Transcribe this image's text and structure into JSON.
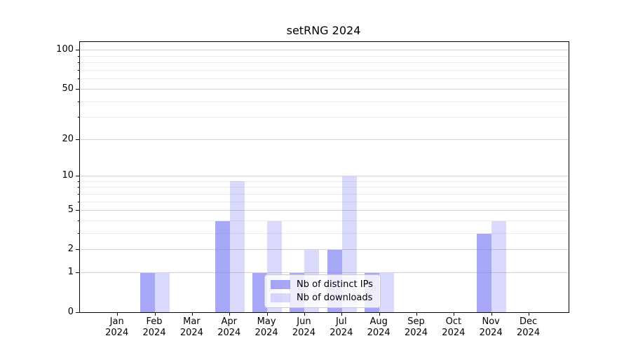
{
  "title": "setRNG 2024",
  "colors": {
    "bar_dark": "rgba(115,115,243,0.63)",
    "bar_light": "rgba(115,115,243,0.27)",
    "grid_major": "#d3d3d3",
    "grid_minor": "#ebebeb",
    "axis": "#000000"
  },
  "chart_data": {
    "type": "bar",
    "title": "setRNG 2024",
    "categories": [
      "Jan 2024",
      "Feb 2024",
      "Mar 2024",
      "Apr 2024",
      "May 2024",
      "Jun 2024",
      "Jul 2024",
      "Aug 2024",
      "Sep 2024",
      "Oct 2024",
      "Nov 2024",
      "Dec 2024"
    ],
    "series": [
      {
        "name": "Nb of distinct IPs",
        "values": [
          0,
          1,
          0,
          4,
          1,
          1,
          2,
          1,
          0,
          0,
          3,
          0
        ]
      },
      {
        "name": "Nb of downloads",
        "values": [
          0,
          1,
          0,
          9,
          4,
          2,
          10,
          1,
          0,
          0,
          4,
          0
        ]
      }
    ],
    "xlabel": "",
    "ylabel": "",
    "yscale": "log1p",
    "ylim": [
      0,
      116
    ],
    "yticks": [
      0,
      1,
      2,
      5,
      10,
      20,
      50,
      100
    ],
    "minor_gridlines": [
      3,
      4,
      6,
      7,
      8,
      9,
      30,
      40,
      60,
      70,
      80,
      90
    ],
    "grid": true,
    "legend_position": "lower center inside"
  },
  "legend": {
    "items": [
      {
        "label": "Nb of distinct IPs"
      },
      {
        "label": "Nb of downloads"
      }
    ]
  }
}
